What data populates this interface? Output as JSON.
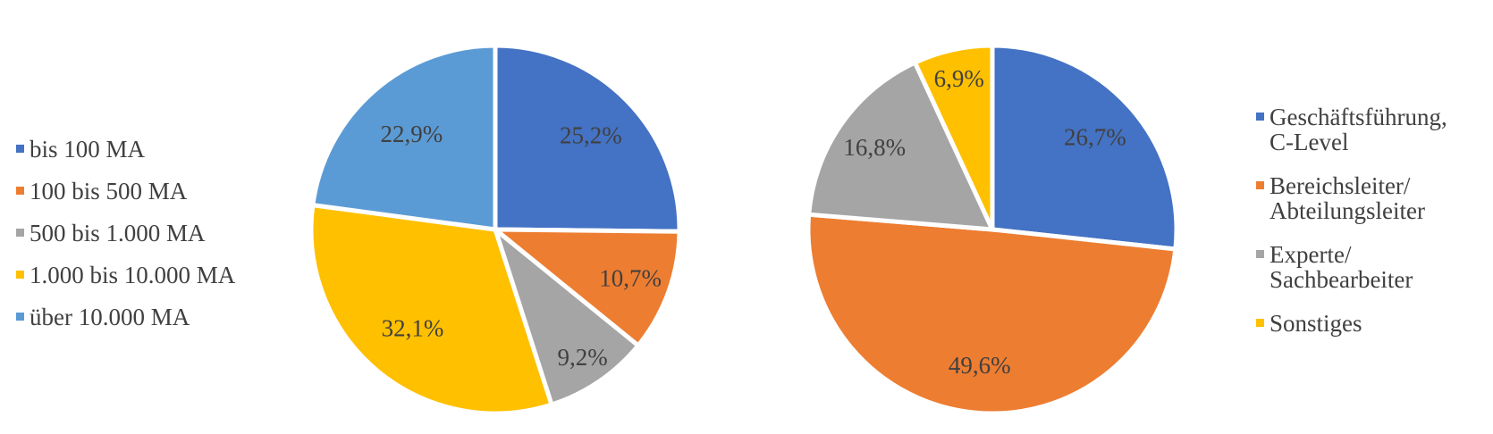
{
  "styles": {
    "background": "#FFFFFF",
    "value_label_color": "#404040",
    "legend_text_color": "#404040",
    "slice_border_color": "#FFFFFF"
  },
  "chart_data": [
    {
      "type": "pie",
      "name": "mitarbeiterzahl",
      "title": "",
      "legend_position": "left",
      "direction": "clockwise",
      "start_angle_deg": 0,
      "categories": [
        "bis 100 MA",
        "100 bis 500 MA",
        "500 bis 1.000 MA",
        "1.000 bis 10.000 MA",
        "über 10.000 MA"
      ],
      "values": [
        25.2,
        10.7,
        9.2,
        32.1,
        22.9
      ],
      "value_labels": [
        "25,2%",
        "10,7%",
        "9,2%",
        "32,1%",
        "22,9%"
      ],
      "colors": [
        "#4472C4",
        "#ED7D31",
        "#A5A5A5",
        "#FFC000",
        "#5B9BD5"
      ],
      "label_radius": [
        0.73,
        0.78,
        0.84,
        0.7,
        0.69
      ]
    },
    {
      "type": "pie",
      "name": "position",
      "title": "",
      "legend_position": "right",
      "direction": "clockwise",
      "start_angle_deg": 0,
      "categories": [
        "Geschäftsführung, C-Level",
        "Bereichsleiter/Abteilungsleiter",
        "Experte/Sachbearbeiter",
        "Sonstiges"
      ],
      "values": [
        26.7,
        49.6,
        16.8,
        6.9
      ],
      "value_labels": [
        "26,7%",
        "49,6%",
        "16,8%",
        "6,9%"
      ],
      "colors": [
        "#4472C4",
        "#ED7D31",
        "#A5A5A5",
        "#FFC000"
      ],
      "label_radius": [
        0.75,
        0.74,
        0.78,
        0.84
      ]
    }
  ]
}
